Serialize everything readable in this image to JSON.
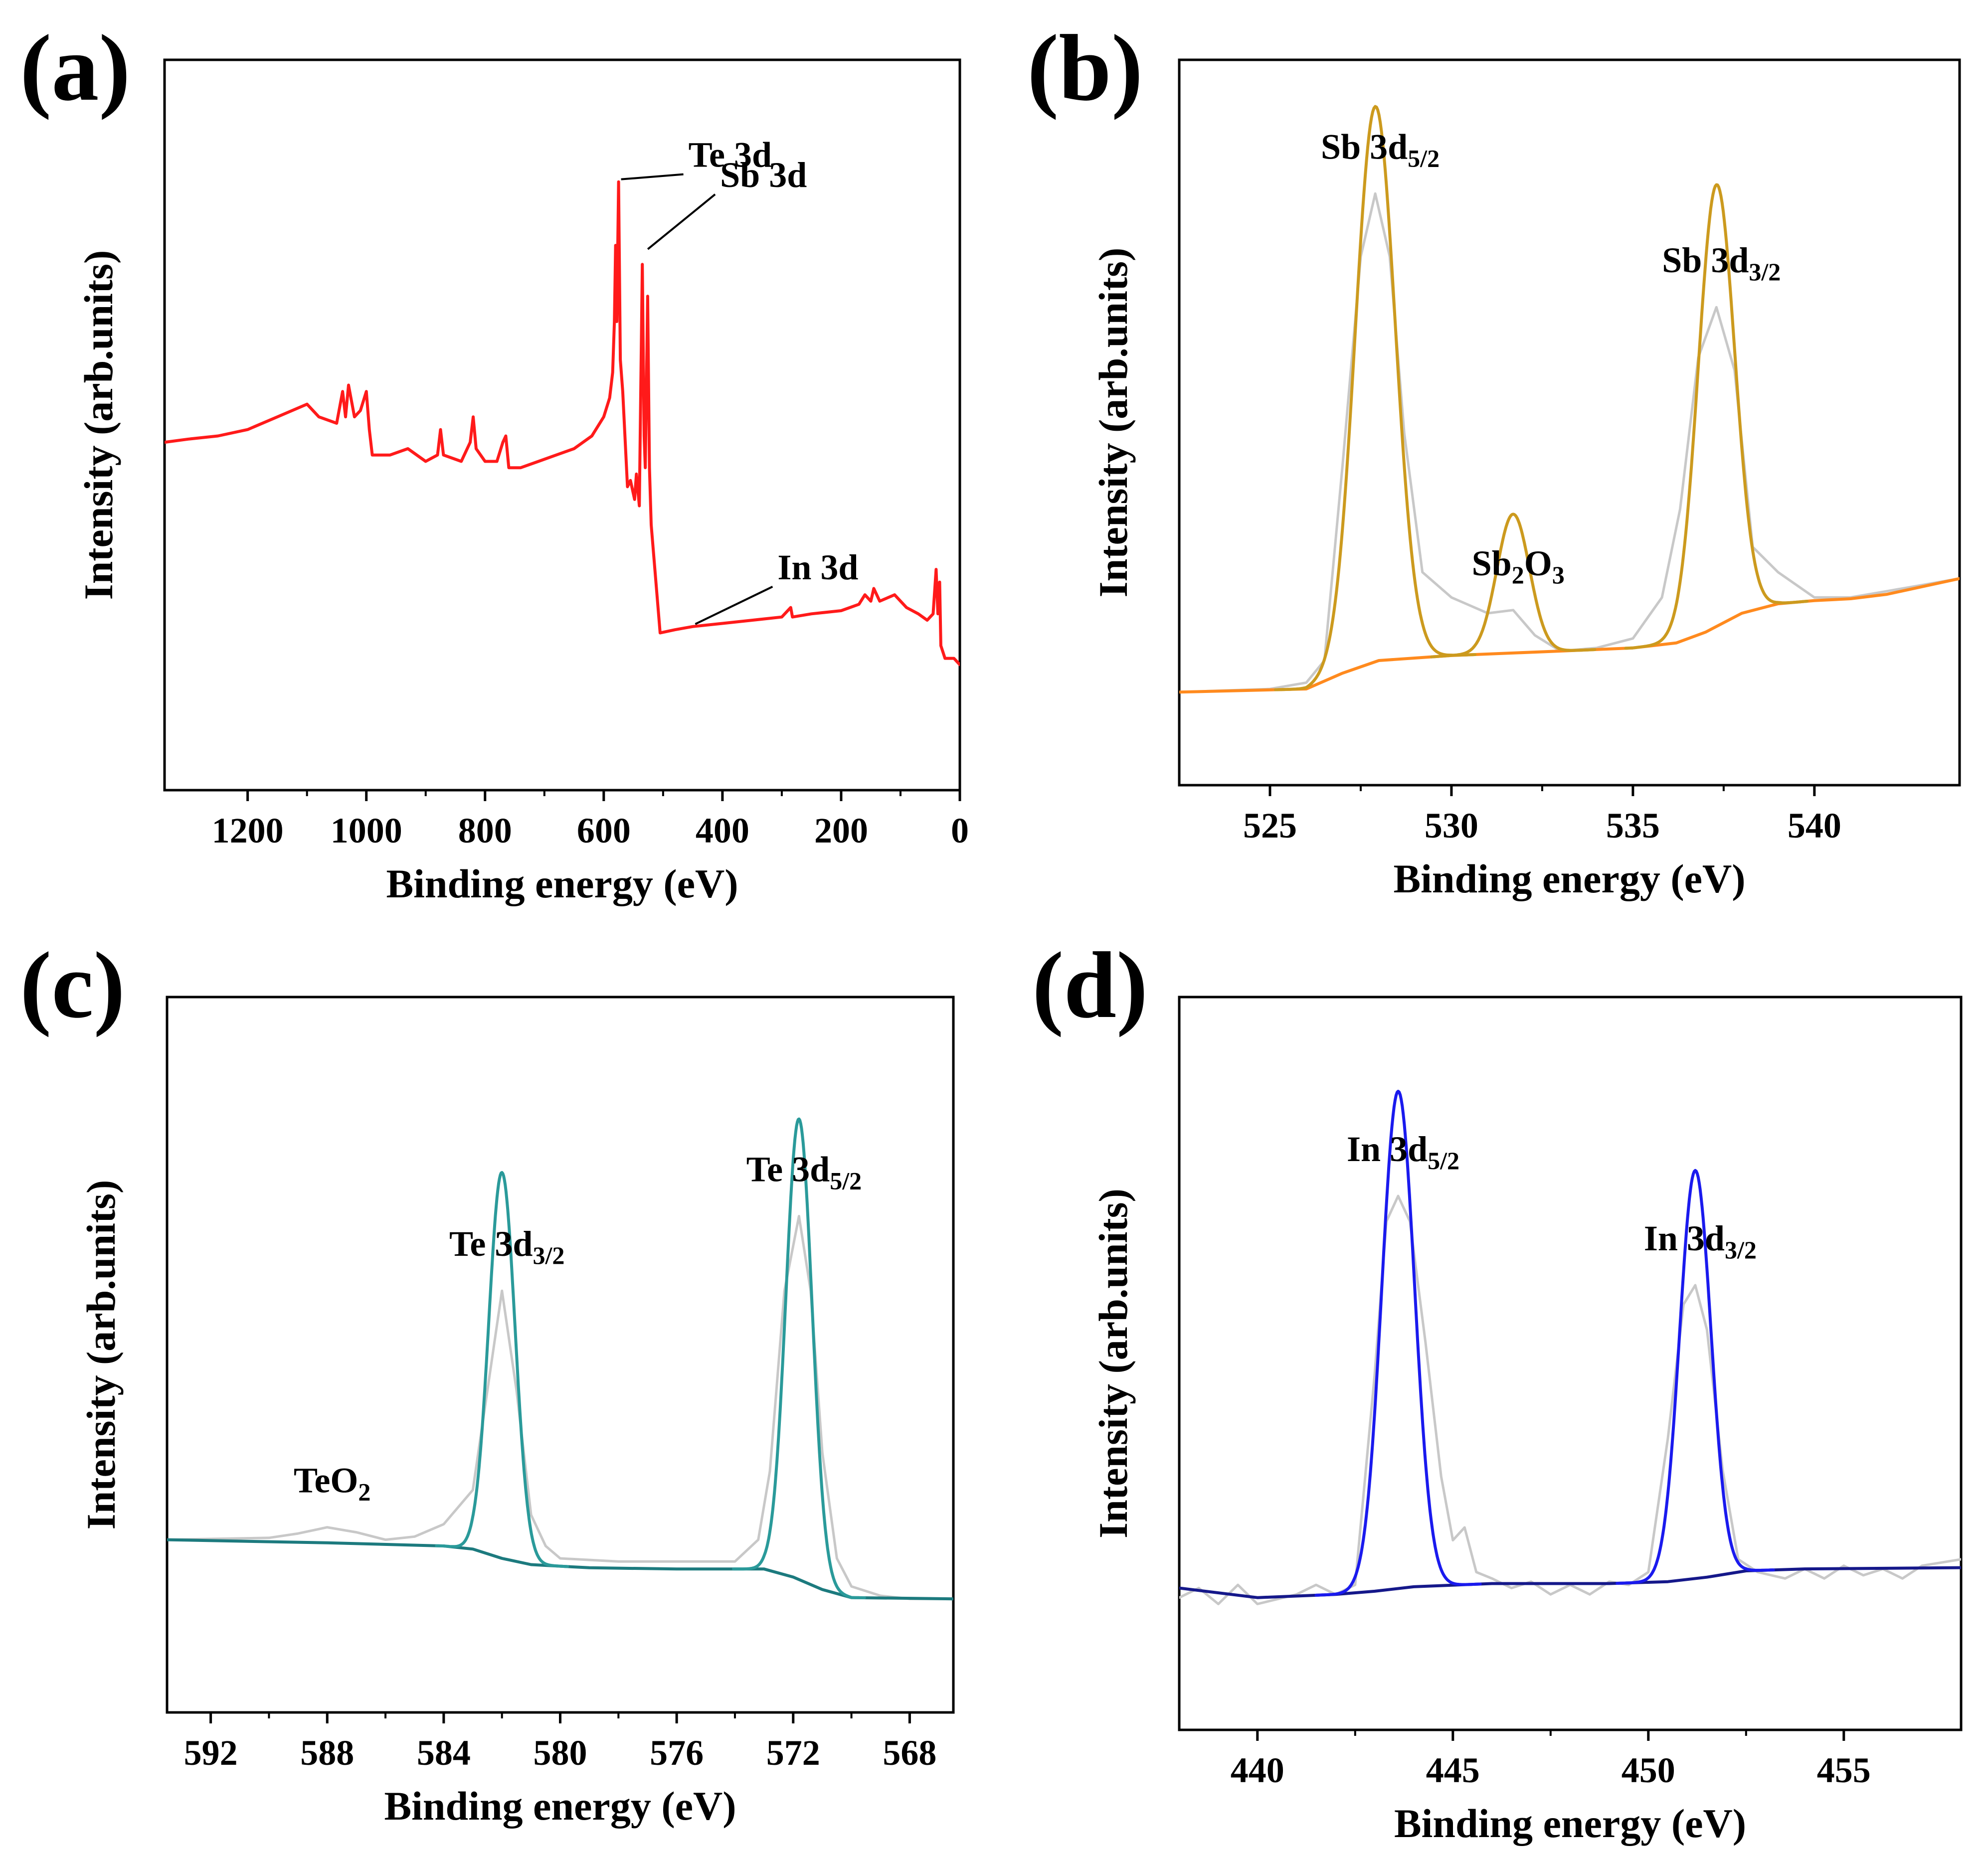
{
  "chart_data": [
    {
      "id": "a",
      "panel_label": "(a)",
      "type": "line",
      "xlabel": "Binding energy (eV)",
      "ylabel": "Intensity (arb.units)",
      "xlim": [
        1340,
        0
      ],
      "ylim": [
        0,
        100
      ],
      "xticks": [
        1200,
        1000,
        800,
        600,
        400,
        200,
        0
      ],
      "series": [
        {
          "name": "survey",
          "color": "#ff1a1a",
          "points": [
            [
              1340,
              49
            ],
            [
              1300,
              49.5
            ],
            [
              1250,
              50
            ],
            [
              1200,
              51
            ],
            [
              1150,
              53
            ],
            [
              1100,
              55
            ],
            [
              1080,
              53
            ],
            [
              1050,
              52
            ],
            [
              1040,
              57
            ],
            [
              1035,
              53
            ],
            [
              1030,
              58
            ],
            [
              1020,
              53
            ],
            [
              1010,
              54
            ],
            [
              1000,
              57
            ],
            [
              995,
              51
            ],
            [
              990,
              47
            ],
            [
              960,
              47
            ],
            [
              930,
              48
            ],
            [
              900,
              46
            ],
            [
              880,
              47
            ],
            [
              875,
              51
            ],
            [
              870,
              47
            ],
            [
              840,
              46
            ],
            [
              825,
              49
            ],
            [
              820,
              53
            ],
            [
              815,
              48
            ],
            [
              800,
              46
            ],
            [
              780,
              46
            ],
            [
              770,
              49
            ],
            [
              765,
              50
            ],
            [
              760,
              45
            ],
            [
              740,
              45
            ],
            [
              710,
              46
            ],
            [
              680,
              47
            ],
            [
              650,
              48
            ],
            [
              620,
              50
            ],
            [
              600,
              53
            ],
            [
              590,
              56
            ],
            [
              585,
              60
            ],
            [
              582,
              68
            ],
            [
              580,
              80
            ],
            [
              578,
              68
            ],
            [
              575,
              90
            ],
            [
              572,
              62
            ],
            [
              568,
              57
            ],
            [
              560,
              42
            ],
            [
              555,
              43
            ],
            [
              548,
              40
            ],
            [
              545,
              44
            ],
            [
              540,
              39
            ],
            [
              535,
              77
            ],
            [
              532,
              50
            ],
            [
              530,
              45
            ],
            [
              526,
              72
            ],
            [
              523,
              45
            ],
            [
              520,
              36
            ],
            [
              505,
              19
            ],
            [
              480,
              19.5
            ],
            [
              450,
              20
            ],
            [
              400,
              20.5
            ],
            [
              350,
              21
            ],
            [
              300,
              21.5
            ],
            [
              285,
              23
            ],
            [
              282,
              21.5
            ],
            [
              250,
              22
            ],
            [
              200,
              22.5
            ],
            [
              170,
              23.5
            ],
            [
              160,
              25
            ],
            [
              150,
              24
            ],
            [
              145,
              26
            ],
            [
              135,
              24
            ],
            [
              110,
              25
            ],
            [
              90,
              23
            ],
            [
              70,
              22
            ],
            [
              55,
              21
            ],
            [
              45,
              22
            ],
            [
              40,
              29
            ],
            [
              37,
              22
            ],
            [
              34,
              27
            ],
            [
              32,
              17
            ],
            [
              25,
              15
            ],
            [
              10,
              15
            ],
            [
              0,
              14
            ]
          ]
        }
      ],
      "annotations": [
        {
          "text": "Te 3d",
          "x": 575,
          "y": 90
        },
        {
          "text": "Sb 3d",
          "x": 530,
          "y": 79
        },
        {
          "text": "In 3d",
          "x": 450,
          "y": 20
        }
      ]
    },
    {
      "id": "b",
      "panel_label": "(b)",
      "type": "line",
      "xlabel": "Binding energy (eV)",
      "ylabel": "Intensity (arb.units)",
      "xlim": [
        522.5,
        544
      ],
      "ylim": [
        0,
        100
      ],
      "xticks": [
        525,
        530,
        535,
        540
      ],
      "series": [
        {
          "name": "measured",
          "color": "#c8c8c8",
          "points": [
            [
              522.5,
              9
            ],
            [
              525,
              9.5
            ],
            [
              526,
              10.5
            ],
            [
              526.5,
              14
            ],
            [
              527,
              45
            ],
            [
              527.5,
              78
            ],
            [
              527.9,
              88
            ],
            [
              528.3,
              78
            ],
            [
              528.7,
              50
            ],
            [
              529.2,
              28
            ],
            [
              530,
              24
            ],
            [
              531,
              21.5
            ],
            [
              531.7,
              22
            ],
            [
              532.3,
              18
            ],
            [
              533,
              15.5
            ],
            [
              534,
              16
            ],
            [
              535,
              17.5
            ],
            [
              535.8,
              24
            ],
            [
              536.3,
              38
            ],
            [
              536.8,
              62
            ],
            [
              537.3,
              70
            ],
            [
              537.8,
              60
            ],
            [
              538.3,
              32
            ],
            [
              539,
              28
            ],
            [
              540,
              24
            ],
            [
              541,
              24
            ],
            [
              542,
              25
            ],
            [
              544,
              27
            ]
          ]
        },
        {
          "name": "background",
          "color": "#ff8a1e",
          "points": [
            [
              522.5,
              9
            ],
            [
              526,
              9.5
            ],
            [
              527,
              12
            ],
            [
              528,
              14
            ],
            [
              530,
              14.8
            ],
            [
              533,
              15.5
            ],
            [
              535,
              16
            ],
            [
              536.2,
              16.8
            ],
            [
              537,
              18.5
            ],
            [
              538,
              21.5
            ],
            [
              539,
              23
            ],
            [
              540,
              23.5
            ],
            [
              541,
              23.8
            ],
            [
              542,
              24.5
            ],
            [
              544,
              27
            ]
          ]
        },
        {
          "name": "Sb 3d5/2 fit",
          "color": "#cc9a1e",
          "peak": {
            "center": 527.9,
            "height": 88,
            "sigma": 0.55
          }
        },
        {
          "name": "Sb2O3 fit",
          "color": "#cc9a1e",
          "peak": {
            "center": 531.7,
            "height": 22,
            "sigma": 0.45
          }
        },
        {
          "name": "Sb 3d3/2 fit",
          "color": "#cc9a1e",
          "peak": {
            "center": 537.3,
            "height": 70,
            "sigma": 0.5
          }
        }
      ],
      "annotations": [
        {
          "text": "Sb 3d",
          "sub": "5/2",
          "x": 527.9,
          "y": 88
        },
        {
          "text": "Sb",
          "sub": "2",
          "text2": "O",
          "sub2": "3",
          "x": 531.7,
          "y": 22
        },
        {
          "text": "Sb 3d",
          "sub": "3/2",
          "x": 537.3,
          "y": 70
        }
      ]
    },
    {
      "id": "c",
      "panel_label": "(c)",
      "type": "line",
      "xlabel": "Binding energy (eV)",
      "ylabel": "Intensity (arb.units)",
      "xlim": [
        593.5,
        566.5
      ],
      "ylim": [
        0,
        100
      ],
      "xticks": [
        592,
        588,
        584,
        580,
        576,
        572,
        568
      ],
      "series": [
        {
          "name": "measured",
          "color": "#c8c8c8",
          "points": [
            [
              593.5,
              22
            ],
            [
              590,
              22.3
            ],
            [
              589,
              23
            ],
            [
              588,
              24
            ],
            [
              587,
              23.2
            ],
            [
              586,
              22
            ],
            [
              585,
              22.5
            ],
            [
              584,
              24.5
            ],
            [
              583,
              30
            ],
            [
              582.5,
              46
            ],
            [
              582,
              62
            ],
            [
              581.5,
              46
            ],
            [
              581,
              26
            ],
            [
              580.5,
              21
            ],
            [
              580,
              19
            ],
            [
              578,
              18.5
            ],
            [
              576,
              18.5
            ],
            [
              574,
              18.5
            ],
            [
              573.2,
              22
            ],
            [
              572.8,
              33
            ],
            [
              572.3,
              62
            ],
            [
              571.8,
              74
            ],
            [
              571.4,
              62
            ],
            [
              571,
              36
            ],
            [
              570.5,
              19
            ],
            [
              570,
              14.5
            ],
            [
              569,
              13
            ],
            [
              568,
              12.5
            ],
            [
              566.5,
              12.5
            ]
          ]
        },
        {
          "name": "background",
          "color": "#1c7a7e",
          "points": [
            [
              593.5,
              22
            ],
            [
              588,
              21.5
            ],
            [
              584,
              21
            ],
            [
              583,
              20.5
            ],
            [
              582,
              19
            ],
            [
              581,
              18
            ],
            [
              579,
              17.5
            ],
            [
              576,
              17.3
            ],
            [
              573,
              17.3
            ],
            [
              572,
              16
            ],
            [
              571,
              14
            ],
            [
              570,
              12.7
            ],
            [
              566.5,
              12.5
            ]
          ]
        },
        {
          "name": "Te 3d3/2 fit",
          "color": "#2a9a9a",
          "peak": {
            "center": 582,
            "height": 62,
            "sigma": 0.45
          }
        },
        {
          "name": "Te 3d5/2 fit",
          "color": "#2a9a9a",
          "peak": {
            "center": 571.8,
            "height": 74,
            "sigma": 0.45
          }
        }
      ],
      "annotations": [
        {
          "text": "TeO",
          "sub": "2",
          "x": 588,
          "y": 24
        },
        {
          "text": "Te 3d",
          "sub": "3/2",
          "x": 582,
          "y": 62
        },
        {
          "text": "Te 3d",
          "sub": "5/2",
          "x": 571.8,
          "y": 74
        }
      ]
    },
    {
      "id": "d",
      "panel_label": "(d)",
      "type": "line",
      "xlabel": "Binding energy (eV)",
      "ylabel": "Intensity (arb.units)",
      "xlim": [
        438,
        458
      ],
      "ylim": [
        0,
        100
      ],
      "xticks": [
        440,
        445,
        450,
        455
      ],
      "series": [
        {
          "name": "measured",
          "color": "#c8c8c8",
          "points": [
            [
              438,
              15
            ],
            [
              438.5,
              16.5
            ],
            [
              439,
              14
            ],
            [
              439.5,
              17
            ],
            [
              440,
              14
            ],
            [
              441,
              15.5
            ],
            [
              441.5,
              17
            ],
            [
              442,
              15.5
            ],
            [
              442.5,
              17
            ],
            [
              443,
              50
            ],
            [
              443.3,
              74
            ],
            [
              443.6,
              78
            ],
            [
              443.9,
              74
            ],
            [
              444.3,
              55
            ],
            [
              444.7,
              34
            ],
            [
              445,
              24
            ],
            [
              445.3,
              26
            ],
            [
              445.6,
              19
            ],
            [
              446,
              18
            ],
            [
              446.5,
              16.5
            ],
            [
              447,
              17.5
            ],
            [
              447.5,
              15.5
            ],
            [
              448,
              17
            ],
            [
              448.5,
              15.5
            ],
            [
              449,
              17.5
            ],
            [
              449.5,
              17
            ],
            [
              450,
              19
            ],
            [
              450.5,
              40
            ],
            [
              450.9,
              61
            ],
            [
              451.2,
              64
            ],
            [
              451.5,
              57
            ],
            [
              451.9,
              35
            ],
            [
              452.3,
              21
            ],
            [
              452.8,
              19
            ],
            [
              453.5,
              18
            ],
            [
              454,
              19.5
            ],
            [
              454.5,
              18
            ],
            [
              455,
              20
            ],
            [
              455.5,
              18.5
            ],
            [
              456,
              19.5
            ],
            [
              456.5,
              18
            ],
            [
              457,
              20
            ],
            [
              458,
              21
            ]
          ]
        },
        {
          "name": "background",
          "color": "#15188a",
          "points": [
            [
              438,
              16.5
            ],
            [
              440,
              15
            ],
            [
              442,
              15.5
            ],
            [
              443,
              16
            ],
            [
              444,
              16.7
            ],
            [
              446,
              17.2
            ],
            [
              449,
              17.2
            ],
            [
              450.5,
              17.5
            ],
            [
              451.5,
              18.2
            ],
            [
              452.5,
              19.2
            ],
            [
              454,
              19.5
            ],
            [
              458,
              19.7
            ]
          ]
        },
        {
          "name": "In 3d5/2 fit",
          "color": "#1a1aee",
          "peak": {
            "center": 443.6,
            "height": 78,
            "sigma": 0.42
          }
        },
        {
          "name": "In 3d3/2 fit",
          "color": "#1a1aee",
          "peak": {
            "center": 451.2,
            "height": 64,
            "sigma": 0.4
          }
        }
      ],
      "annotations": [
        {
          "text": "In 3d",
          "sub": "5/2",
          "x": 443.6,
          "y": 78
        },
        {
          "text": "In 3d",
          "sub": "3/2",
          "x": 451.2,
          "y": 64
        }
      ]
    }
  ]
}
